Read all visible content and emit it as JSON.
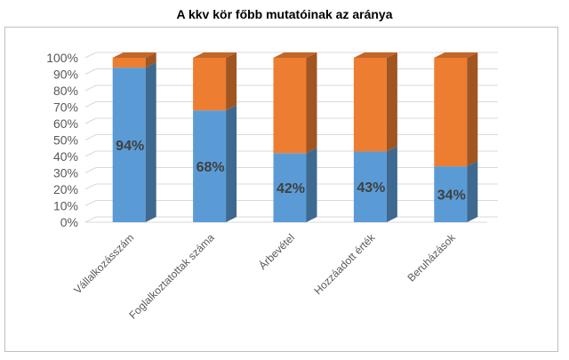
{
  "chart_data": {
    "type": "bar",
    "stacked": true,
    "percent_stacked": true,
    "style": "3d-column",
    "title": "A kkv kör főbb mutatóinak az aránya",
    "categories": [
      "Vállalkozásszám",
      "Foglalkoztatottak száma",
      "Árbevétel",
      "Hozzáadott érték",
      "Beruházások"
    ],
    "series": [
      {
        "values": [
          94,
          68,
          42,
          43,
          34
        ],
        "color": "#5b9bd5"
      },
      {
        "values": [
          6,
          32,
          58,
          57,
          66
        ],
        "color": "#ed7d31"
      }
    ],
    "data_labels": [
      "94%",
      "68%",
      "42%",
      "43%",
      "34%"
    ],
    "ylim": [
      0,
      100
    ],
    "y_ticks": [
      "0%",
      "10%",
      "20%",
      "30%",
      "40%",
      "50%",
      "60%",
      "70%",
      "80%",
      "90%",
      "100%"
    ],
    "grid": true,
    "legend": "none"
  }
}
